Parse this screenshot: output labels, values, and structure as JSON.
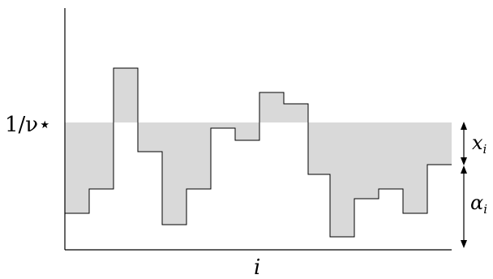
{
  "labels": {
    "y_level": "1/ν⋆",
    "x_axis": "i",
    "x_arrow": "x",
    "x_arrow_sub": "i",
    "alpha_arrow": "α",
    "alpha_arrow_sub": "i"
  },
  "colors": {
    "fill": "#d9d9d9",
    "line": "#000000"
  }
}
